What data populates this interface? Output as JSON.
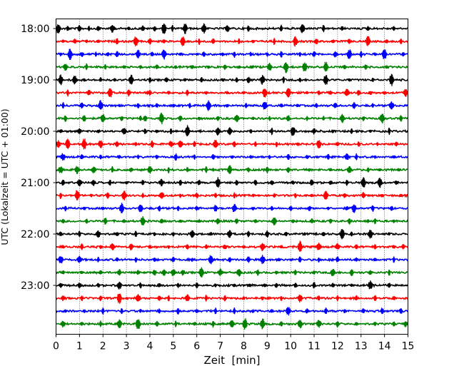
{
  "chart_data": {
    "type": "line",
    "title": "",
    "xlabel": "Zeit  [min]",
    "ylabel": "UTC (Lokalzeit = UTC + 01:00)",
    "xlim": [
      0,
      15
    ],
    "x_ticks": [
      "0",
      "1",
      "2",
      "3",
      "4",
      "5",
      "6",
      "7",
      "8",
      "9",
      "10",
      "11",
      "12",
      "13",
      "14",
      "15"
    ],
    "y_ticks": [
      "18:00",
      "19:00",
      "20:00",
      "21:00",
      "22:00",
      "23:00"
    ],
    "grid_x": true,
    "colors": [
      "#000000",
      "#ff0000",
      "#0000ff",
      "#008000"
    ],
    "series": [
      {
        "start": "18:00",
        "color": "#000000",
        "events": [
          0.1,
          0.5,
          1.0,
          1.4,
          1.8,
          2.4,
          3.1,
          3.7,
          4.2,
          4.6,
          4.96,
          5.5,
          6.3,
          7.3,
          8.2,
          9.6,
          10.5,
          11.4,
          12.2,
          13.3,
          14.4
        ]
      },
      {
        "start": "18:15",
        "color": "#ff0000",
        "events": [
          0.3,
          0.8,
          1.3,
          1.8,
          2.6,
          3.4,
          4.0,
          4.6,
          5.4,
          6.1,
          6.7,
          7.8,
          8.4,
          9.3,
          10.2,
          11.1,
          11.8,
          12.5,
          13.3,
          14.1,
          14.7
        ]
      },
      {
        "start": "18:30",
        "color": "#0000ff",
        "events": [
          0.2,
          0.6,
          1.1,
          1.7,
          2.2,
          2.6,
          3.5,
          4.1,
          4.6,
          5.3,
          6.3,
          7.1,
          7.6,
          8.3,
          9.0,
          9.6,
          10.4,
          11.0,
          11.9,
          12.5,
          13.0,
          13.6,
          14.0,
          14.8
        ]
      },
      {
        "start": "18:45",
        "color": "#008000",
        "events": [
          0.4,
          1.3,
          2.1,
          2.9,
          3.6,
          4.3,
          5.1,
          5.8,
          6.5,
          7.2,
          7.8,
          8.35,
          9.1,
          9.8,
          10.6,
          11.5,
          12.3,
          13.2,
          14.1
        ]
      },
      {
        "start": "19:00",
        "color": "#000000",
        "events": [
          0.2,
          0.8,
          1.2,
          1.9,
          2.5,
          3.2,
          4.0,
          4.7,
          5.5,
          6.2,
          7.1,
          7.7,
          8.2,
          8.8,
          9.7,
          10.4,
          11.5,
          12.5,
          13.5,
          14.3
        ]
      },
      {
        "start": "19:15",
        "color": "#ff0000",
        "events": [
          0.5,
          1.4,
          2.3,
          3.1,
          3.9,
          4.0,
          4.8,
          5.6,
          6.4,
          7.3,
          8.0,
          8.9,
          9.9,
          10.7,
          11.2,
          11.7,
          12.4,
          12.9,
          13.4,
          14.0,
          14.9
        ]
      },
      {
        "start": "19:30",
        "color": "#0000ff",
        "events": [
          0.3,
          1.1,
          1.9,
          2.7,
          3.5,
          4.3,
          5.0,
          5.7,
          6.5,
          7.3,
          8.1,
          8.9,
          9.6,
          10.3,
          11.1,
          11.9,
          12.7,
          13.5,
          14.3
        ]
      },
      {
        "start": "19:45",
        "color": "#008000",
        "events": [
          0.4,
          1.2,
          2.0,
          2.8,
          3.6,
          3.8,
          4.5,
          5.3,
          6.1,
          6.9,
          7.7,
          8.4,
          9.1,
          9.9,
          10.7,
          11.4,
          12.2,
          13.1,
          13.9,
          14.7
        ]
      },
      {
        "start": "20:00",
        "color": "#000000",
        "events": [
          0.2,
          1.0,
          1.8,
          2.9,
          3.8,
          4.3,
          4.9,
          5.6,
          6.9,
          7.4,
          8.3,
          9.2,
          10.1,
          11.0,
          11.8,
          12.6,
          13.4,
          14.2
        ]
      },
      {
        "start": "20:15",
        "color": "#ff0000",
        "events": [
          0.1,
          0.5,
          1.2,
          1.9,
          2.6,
          3.4,
          4.1,
          4.9,
          5.3,
          5.9,
          6.8,
          7.6,
          8.5,
          9.4,
          10.3,
          11.2,
          12.0,
          12.9,
          13.7,
          14.5
        ]
      },
      {
        "start": "20:30",
        "color": "#0000ff",
        "events": [
          0.3,
          1.1,
          1.9,
          2.7,
          3.5,
          4.3,
          5.1,
          5.9,
          6.7,
          7.5,
          8.3,
          9.1,
          9.9,
          10.7,
          11.6,
          12.4,
          12.8,
          13.6,
          14.4
        ]
      },
      {
        "start": "20:45",
        "color": "#008000",
        "events": [
          0.2,
          0.9,
          1.6,
          2.4,
          3.2,
          4.0,
          4.8,
          5.6,
          6.4,
          6.7,
          7.4,
          8.2,
          9.0,
          9.9,
          10.8,
          11.7,
          12.5,
          13.3,
          13.8,
          14.6
        ]
      },
      {
        "start": "21:00",
        "color": "#000000",
        "events": [
          0.3,
          1.0,
          1.6,
          2.3,
          3.0,
          3.7,
          4.5,
          5.3,
          6.1,
          6.9,
          7.7,
          8.5,
          9.2,
          10.1,
          10.9,
          11.7,
          12.4,
          13.1,
          13.8,
          14.5
        ]
      },
      {
        "start": "21:15",
        "color": "#ff0000",
        "events": [
          0.2,
          0.9,
          1.5,
          2.2,
          2.9,
          3.7,
          4.5,
          5.3,
          6.0,
          6.8,
          7.6,
          8.4,
          9.3,
          10.2,
          10.9,
          11.5,
          12.3,
          13.1,
          13.9,
          14.7
        ]
      },
      {
        "start": "21:30",
        "color": "#0000ff",
        "events": [
          0.4,
          1.2,
          2.0,
          2.8,
          3.6,
          4.4,
          5.2,
          6.0,
          6.8,
          7.6,
          8.4,
          9.2,
          10.0,
          10.8,
          11.6,
          12.4,
          12.7,
          13.5,
          14.3
        ]
      },
      {
        "start": "21:45",
        "color": "#008000",
        "events": [
          0.3,
          1.3,
          2.1,
          2.9,
          3.7,
          4.5,
          5.3,
          6.1,
          6.9,
          7.7,
          8.5,
          9.3,
          10.1,
          10.9,
          11.7,
          12.5,
          13.3,
          13.6,
          14.4
        ]
      },
      {
        "start": "22:00",
        "color": "#000000",
        "events": [
          0.2,
          1.0,
          1.8,
          2.6,
          3.4,
          4.2,
          5.0,
          5.8,
          6.6,
          7.4,
          8.2,
          9.0,
          9.8,
          10.6,
          11.4,
          12.2,
          12.6,
          13.4,
          14.2
        ]
      },
      {
        "start": "22:15",
        "color": "#ff0000",
        "events": [
          0.3,
          1.1,
          1.9,
          2.4,
          3.2,
          4.0,
          4.8,
          5.6,
          6.4,
          7.2,
          8.0,
          8.8,
          9.6,
          10.4,
          11.2,
          12.0,
          12.8,
          13.6,
          14.4,
          14.8
        ]
      },
      {
        "start": "22:30",
        "color": "#0000ff",
        "events": [
          0.2,
          1.0,
          1.8,
          2.6,
          3.4,
          4.2,
          5.0,
          5.8,
          6.6,
          7.4,
          8.2,
          8.8,
          9.5,
          10.4,
          11.2,
          12.0,
          12.8,
          13.6,
          14.4
        ]
      },
      {
        "start": "22:45",
        "color": "#008000",
        "events": [
          0.3,
          1.1,
          1.9,
          2.7,
          3.5,
          4.2,
          4.6,
          5.0,
          5.4,
          6.2,
          7.0,
          7.8,
          8.6,
          9.4,
          10.2,
          11.0,
          11.8,
          12.6,
          13.4,
          14.2
        ]
      },
      {
        "start": "23:00",
        "color": "#000000",
        "events": [
          0.2,
          1.0,
          1.8,
          2.7,
          3.6,
          4.4,
          5.2,
          6.0,
          6.8,
          7.6,
          8.25,
          8.9,
          9.4,
          10.2,
          11.0,
          11.8,
          12.6,
          13.4,
          14.2
        ]
      },
      {
        "start": "23:15",
        "color": "#ff0000",
        "events": [
          0.3,
          1.1,
          1.9,
          2.7,
          3.5,
          4.4,
          4.8,
          5.6,
          6.4,
          7.2,
          8.0,
          8.8,
          9.6,
          10.4,
          11.2,
          12.0,
          12.8,
          13.6,
          14.4
        ]
      },
      {
        "start": "23:30",
        "color": "#0000ff",
        "events": [
          0.4,
          1.2,
          2.0,
          2.8,
          3.6,
          4.4,
          5.2,
          6.0,
          6.8,
          7.6,
          8.4,
          9.2,
          9.9,
          10.7,
          11.5,
          12.3,
          13.1,
          13.9,
          14.7
        ]
      },
      {
        "start": "23:45",
        "color": "#008000",
        "events": [
          0.3,
          1.1,
          1.9,
          2.7,
          3.5,
          4.3,
          5.1,
          5.9,
          6.7,
          7.5,
          8.05,
          8.8,
          9.6,
          10.4,
          11.2,
          12.0,
          12.8,
          13.6,
          14.4,
          14.9
        ]
      }
    ]
  }
}
